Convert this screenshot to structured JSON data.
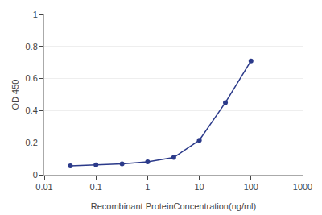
{
  "chart_data": {
    "type": "line",
    "x": [
      0.032,
      0.1,
      0.32,
      1.0,
      3.2,
      10.0,
      32.0,
      100.0
    ],
    "values": [
      0.055,
      0.062,
      0.068,
      0.08,
      0.108,
      0.215,
      0.45,
      0.71
    ],
    "color": "#2b3a8a",
    "marker": "circle",
    "xlabel": "Recombinant ProteinConcentration(ng/ml)",
    "ylabel": "OD 450",
    "log": "x",
    "xlim": [
      0.01,
      1000
    ],
    "ylim": [
      0,
      1.0
    ],
    "xticks": [
      0.01,
      0.1,
      1,
      10,
      100,
      1000
    ],
    "yticks": [
      0,
      0.2,
      0.4,
      0.6,
      0.8,
      1
    ],
    "grid": "y"
  }
}
